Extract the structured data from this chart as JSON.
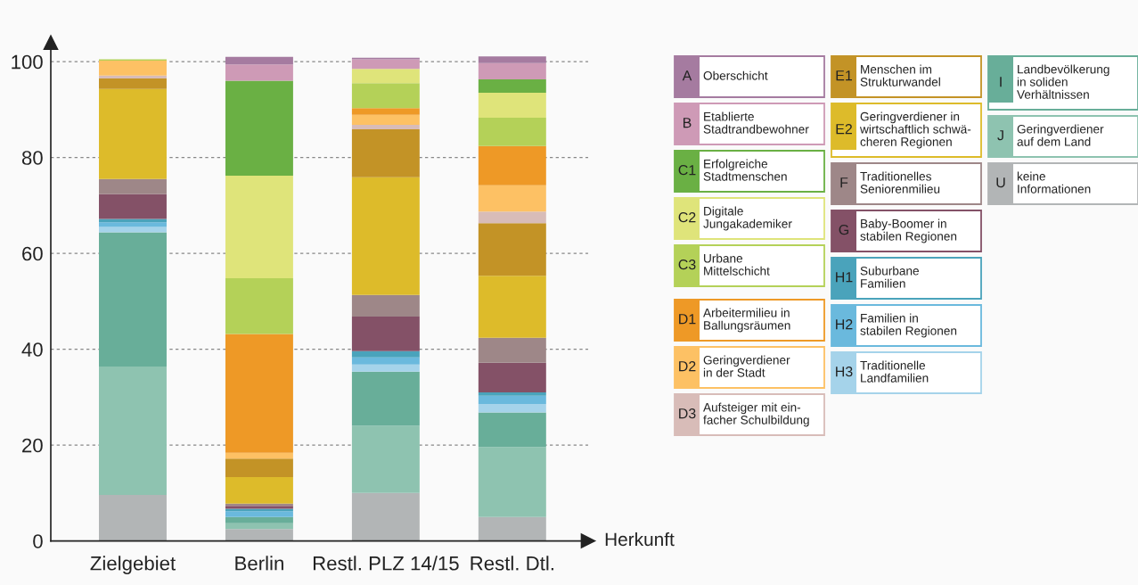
{
  "chart_data": {
    "type": "bar",
    "stacked": true,
    "xlabel": "Herkunft",
    "categories": [
      "Zielgebiet",
      "Berlin",
      "Restl. PLZ 14/15",
      "Restl. Dtl."
    ],
    "ylim": [
      0,
      104
    ],
    "yticks": [
      0,
      20,
      40,
      60,
      80,
      100
    ],
    "grid": "y",
    "legend": "right",
    "series": [
      {
        "name": "U keine\nInformationen",
        "color": "#b2b5b6",
        "values": [
          9.6,
          2.5,
          10,
          5
        ]
      },
      {
        "name": "J Geringverdiener\nauf dem Land",
        "color": "#8ec3b0",
        "values": [
          26.8,
          1.2,
          14,
          14.6
        ]
      },
      {
        "name": "I Landbevölkerung\nin soliden\nVerhältnissen",
        "color": "#68ae99",
        "values": [
          28,
          1.3,
          11.3,
          7.2
        ]
      },
      {
        "name": "H3 Traditionelle\nLandfamilien",
        "color": "#a5d3ea",
        "values": [
          1.1,
          0,
          1.5,
          1.8
        ]
      },
      {
        "name": "H2 Familien in\nstabilen Regionen",
        "color": "#6ab9dd",
        "values": [
          1,
          1.2,
          1.5,
          1.7
        ]
      },
      {
        "name": "H1 Suburbane\nFamilien",
        "color": "#4aa3bb",
        "values": [
          0.7,
          0.5,
          1.3,
          0.7
        ]
      },
      {
        "name": "G Baby-Boomer in\nstabilen Regionen",
        "color": "#845167",
        "values": [
          5.2,
          0.6,
          7.2,
          6.2
        ]
      },
      {
        "name": "F Traditionelles\nSeniorenmilieu",
        "color": "#9e8788",
        "values": [
          3.1,
          0.5,
          4.5,
          5.2
        ]
      },
      {
        "name": "E2 Geringverdiener in\nwirtschaftlich schwä-\ncheren Regionen",
        "color": "#ddbb2a",
        "values": [
          18.8,
          5.5,
          24.6,
          12.9
        ]
      },
      {
        "name": "E1 Menschen im\nStrukturwandel",
        "color": "#c39326",
        "values": [
          2.2,
          3.9,
          10,
          11
        ]
      },
      {
        "name": "D3 Aufsteiger mit ein-\nfacher Schulbildung",
        "color": "#d8bcb8",
        "values": [
          0.6,
          0,
          0.9,
          2.4
        ]
      },
      {
        "name": "D2 Geringverdiener\nin der Stadt",
        "color": "#fdc164",
        "values": [
          3.1,
          1.2,
          2.1,
          5.5
        ]
      },
      {
        "name": "D1 Arbeitermilieu in\nBallungsräumen",
        "color": "#ee9926",
        "values": [
          0,
          24.8,
          1.4,
          8.2
        ]
      },
      {
        "name": "C3 Urbane\nMittelschicht",
        "color": "#b4d158",
        "values": [
          0.3,
          11.6,
          5.2,
          5.9
        ]
      },
      {
        "name": "C2 Digitale\nJungakademiker",
        "color": "#dfe47a",
        "values": [
          0,
          21.4,
          3,
          5.2
        ]
      },
      {
        "name": "C1 Erfolgreiche\nStadtmenschen",
        "color": "#6ab044",
        "values": [
          0,
          19.8,
          0,
          2.8
        ]
      },
      {
        "name": "B Etablierte\nStadtrandbewohner",
        "color": "#ce9ab6",
        "values": [
          0,
          3.4,
          2,
          3.4
        ]
      },
      {
        "name": "A Oberschicht",
        "color": "#a57ba0",
        "values": [
          0,
          1.6,
          0.3,
          1.4
        ]
      }
    ]
  }
}
